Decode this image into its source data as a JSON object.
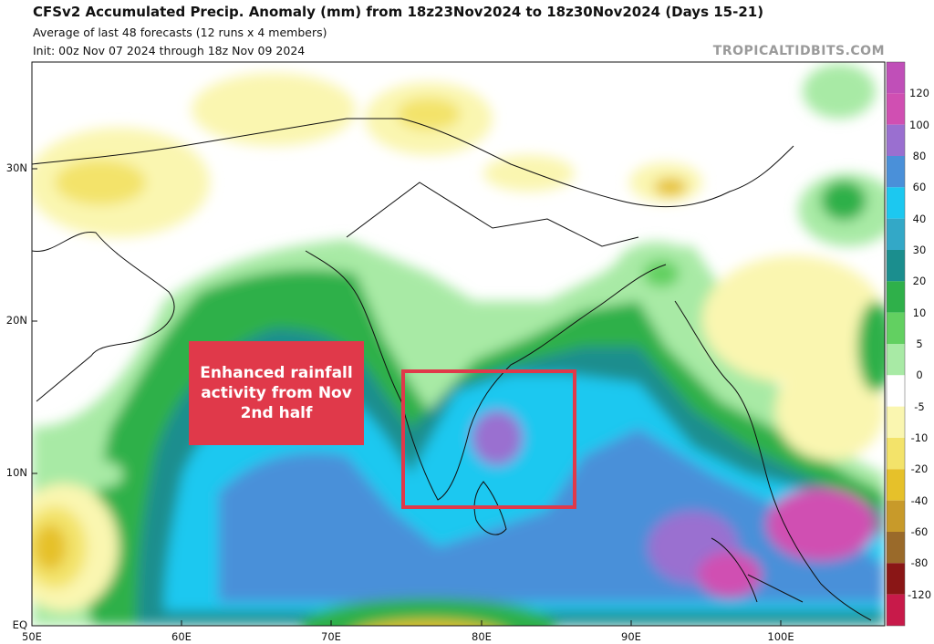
{
  "header": {
    "title": "CFSv2 Accumulated Precip. Anomaly (mm) from 18z23Nov2024 to 18z30Nov2024 (Days 15-21)",
    "subtitle": "Average of last 48 forecasts (12 runs x 4 members)",
    "init": "Init: 00z Nov 07 2024 through 18z Nov 09 2024",
    "brand": "TROPICALTIDBITS.COM"
  },
  "axes": {
    "lat_labels": [
      "30N",
      "20N",
      "10N",
      "EQ"
    ],
    "lon_labels": [
      "50E",
      "60E",
      "70E",
      "80E",
      "90E",
      "100E"
    ]
  },
  "colorbar": {
    "labels": [
      "120",
      "100",
      "80",
      "60",
      "40",
      "30",
      "20",
      "10",
      "5",
      "0",
      "-5",
      "-10",
      "-20",
      "-40",
      "-60",
      "-80",
      "-120"
    ],
    "colors": [
      "#d04fb2",
      "#9a6fd0",
      "#4a90d9",
      "#1cc8f0",
      "#33a8c7",
      "#1b8e8e",
      "#2fb04a",
      "#62d061",
      "#a8eaa5",
      "#ffffff",
      "#faf6b0",
      "#f3e36a",
      "#e6c12a",
      "#c89a2a",
      "#9a6a2a",
      "#8a1616",
      "#c81a4a"
    ]
  },
  "annotation": {
    "text": "Enhanced rainfall activity from Nov 2nd half"
  }
}
